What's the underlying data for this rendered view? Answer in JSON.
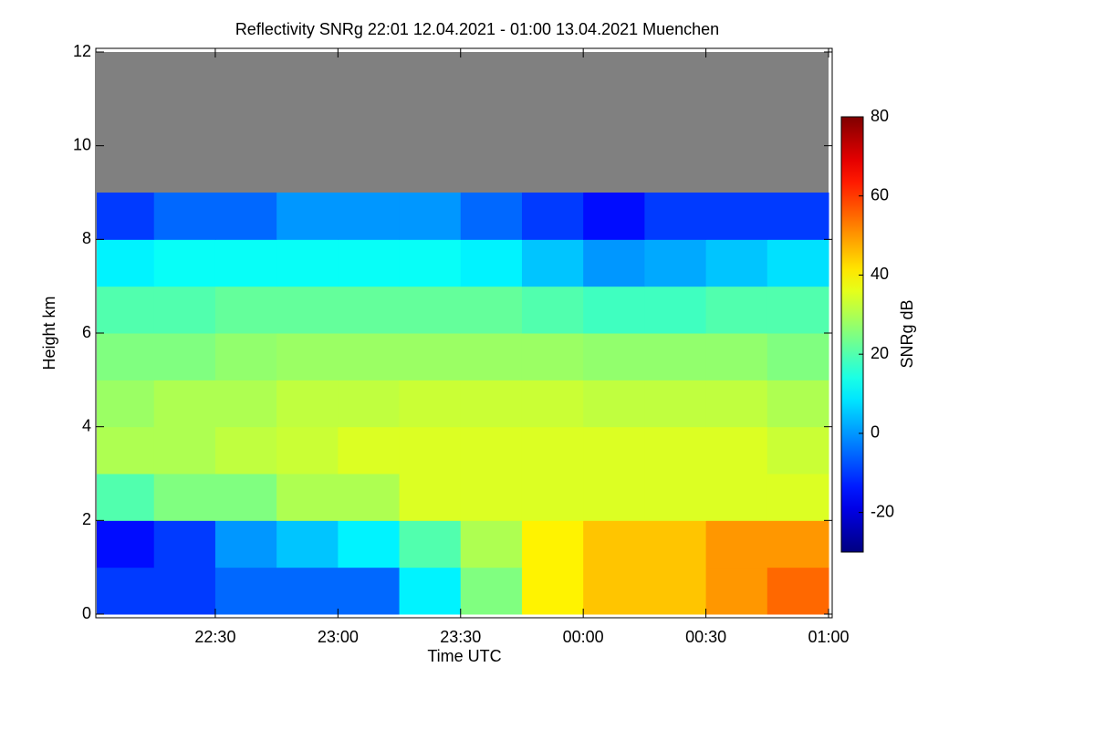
{
  "chart_data": {
    "type": "heatmap",
    "title": "Reflectivity SNRg   22:01 12.04.2021 - 01:00 13.04.2021 Muenchen",
    "x_label": "Time UTC",
    "y_label": "Height km",
    "colorbar_label": "SNRg dB",
    "background": "#808080",
    "colormap": "jet",
    "xlim": [
      1,
      180
    ],
    "xticks": [
      {
        "value": 30,
        "label": "22:30"
      },
      {
        "value": 60,
        "label": "23:00"
      },
      {
        "value": 90,
        "label": "23:30"
      },
      {
        "value": 120,
        "label": "00:00"
      },
      {
        "value": 150,
        "label": "00:30"
      },
      {
        "value": 180,
        "label": "01:00"
      }
    ],
    "ylim": [
      0,
      12
    ],
    "yticks": [
      0,
      2,
      4,
      6,
      8,
      10,
      12
    ],
    "zlim": [
      -30,
      80
    ],
    "zticks": [
      -20,
      0,
      20,
      40,
      60,
      80
    ],
    "xbins": [
      1,
      15,
      30,
      45,
      60,
      75,
      90,
      105,
      120,
      135,
      150,
      165,
      180
    ],
    "ybins": [
      0,
      1,
      2,
      3,
      4,
      5,
      6,
      7,
      8,
      9,
      10,
      11,
      12
    ],
    "z": [
      [
        -10,
        -10,
        -5,
        -5,
        -5,
        10,
        25,
        40,
        45,
        45,
        50,
        55
      ],
      [
        -15,
        -10,
        0,
        5,
        10,
        20,
        30,
        40,
        45,
        45,
        50,
        50
      ],
      [
        20,
        25,
        25,
        30,
        30,
        35,
        35,
        35,
        35,
        35,
        35,
        35
      ],
      [
        30,
        30,
        32,
        33,
        35,
        35,
        35,
        35,
        35,
        35,
        35,
        33
      ],
      [
        28,
        30,
        30,
        32,
        32,
        33,
        33,
        33,
        32,
        32,
        32,
        30
      ],
      [
        25,
        25,
        27,
        28,
        28,
        28,
        28,
        28,
        27,
        27,
        27,
        25
      ],
      [
        20,
        20,
        22,
        22,
        22,
        22,
        22,
        20,
        18,
        18,
        20,
        20
      ],
      [
        10,
        12,
        12,
        12,
        12,
        12,
        10,
        5,
        0,
        2,
        5,
        8
      ],
      [
        -10,
        -5,
        -5,
        0,
        0,
        0,
        -5,
        -10,
        -15,
        -10,
        -10,
        -10
      ],
      [
        null,
        null,
        null,
        null,
        null,
        null,
        null,
        null,
        null,
        null,
        null,
        null
      ],
      [
        null,
        null,
        null,
        null,
        null,
        null,
        null,
        null,
        null,
        null,
        null,
        null
      ],
      [
        null,
        null,
        null,
        null,
        null,
        null,
        null,
        null,
        null,
        null,
        null,
        null
      ]
    ]
  }
}
